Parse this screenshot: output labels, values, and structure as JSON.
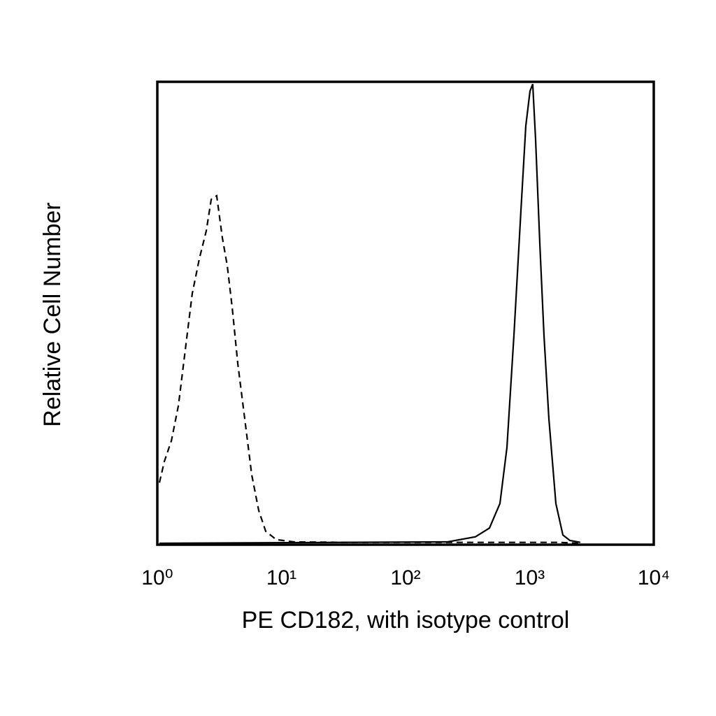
{
  "chart_data": {
    "type": "line",
    "x_label": "PE CD182, with isotype control",
    "y_label": "Relative Cell Number",
    "x_scale": "log",
    "xlim": [
      1,
      10000
    ],
    "xticks": [
      {
        "value": 1,
        "label": "10⁰"
      },
      {
        "value": 10,
        "label": "10¹"
      },
      {
        "value": 100,
        "label": "10²"
      },
      {
        "value": 1000,
        "label": "10³"
      },
      {
        "value": 10000,
        "label": "10⁴"
      }
    ],
    "ylim": [
      0,
      100
    ],
    "grid": false,
    "series": [
      {
        "color": "#000000",
        "dashed": true,
        "x": [
          1.04,
          1.14,
          1.3,
          1.48,
          1.68,
          1.91,
          2.18,
          2.48,
          2.72,
          3.01,
          3.34,
          3.66,
          4.01,
          4.45,
          5.06,
          5.76,
          6.56,
          7.47,
          9.07,
          12.6,
          35.4,
          130,
          474,
          1735,
          2560
        ],
        "values": [
          13.4,
          18.0,
          22.5,
          30.1,
          42.1,
          54.2,
          61.8,
          67.8,
          74.6,
          75.4,
          66.3,
          60.3,
          51.2,
          39.1,
          27.2,
          15.1,
          7.4,
          2.9,
          1.1,
          0.6,
          0.5,
          0.5,
          0.5,
          0.5,
          0.3
        ]
      },
      {
        "color": "#000000",
        "dashed": false,
        "x": [
          1.04,
          218,
          366,
          474,
          576,
          656,
          747,
          851,
          931,
          1007,
          1059,
          1117,
          1208,
          1304,
          1429,
          1626,
          1852,
          2110,
          2560
        ],
        "values": [
          0.3,
          0.6,
          1.7,
          3.6,
          8.9,
          21.0,
          45.2,
          72.4,
          90.5,
          98.0,
          99.5,
          87.5,
          64.8,
          45.2,
          27.2,
          8.9,
          2.1,
          0.9,
          0.5
        ]
      }
    ]
  }
}
